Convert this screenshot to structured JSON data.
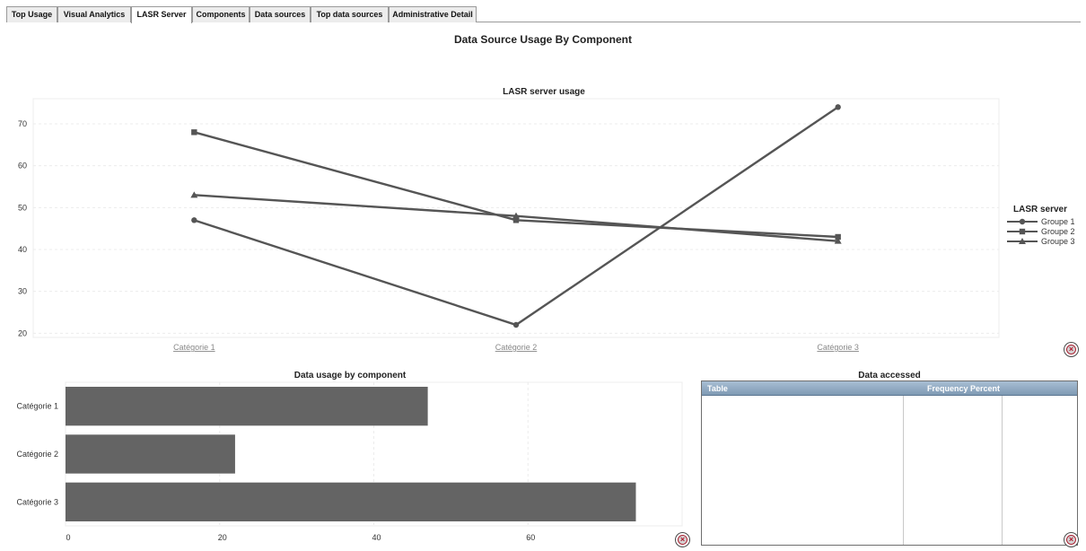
{
  "tabs": [
    {
      "label": "Top Usage",
      "active": false
    },
    {
      "label": "Visual Analytics",
      "active": false
    },
    {
      "label": "LASR Server",
      "active": true
    },
    {
      "label": "Components",
      "active": false
    },
    {
      "label": "Data sources",
      "active": false
    },
    {
      "label": "Top data sources",
      "active": false
    },
    {
      "label": "Administrative Detail",
      "active": false
    }
  ],
  "page_title": "Data Source Usage By Component",
  "line_chart": {
    "title": "LASR server usage",
    "legend_title": "LASR server",
    "close_icon": "close-circle-icon"
  },
  "bar_chart": {
    "title": "Data usage by component",
    "close_icon": "close-circle-icon"
  },
  "data_table": {
    "title": "Data accessed",
    "columns": [
      "Table",
      "Frequency Percent"
    ],
    "rows": [],
    "header_color": "#8aa3bb",
    "close_icon": "close-circle-icon"
  },
  "chart_data": [
    {
      "type": "line",
      "title": "LASR server usage",
      "categories": [
        "Catégorie 1",
        "Catégorie 2",
        "Catégorie 3"
      ],
      "series": [
        {
          "name": "Groupe 1",
          "marker": "circle",
          "values": [
            47,
            22,
            74
          ]
        },
        {
          "name": "Groupe 2",
          "marker": "square",
          "values": [
            68,
            47,
            43
          ]
        },
        {
          "name": "Groupe 3",
          "marker": "triangle",
          "values": [
            53,
            48,
            42
          ]
        }
      ],
      "yticks": [
        20,
        30,
        40,
        50,
        60,
        70
      ],
      "ylim": [
        19,
        76
      ],
      "legend_title": "LASR server",
      "legend_position": "right",
      "grid": true,
      "color": "#555555"
    },
    {
      "type": "bar",
      "orientation": "horizontal",
      "title": "Data usage by component",
      "categories": [
        "Catégorie 1",
        "Catégorie 2",
        "Catégorie 3"
      ],
      "values": [
        47,
        22,
        74
      ],
      "xticks": [
        0,
        20,
        40,
        60
      ],
      "xlim": [
        0,
        80
      ],
      "grid": true,
      "color": "#646464"
    }
  ]
}
